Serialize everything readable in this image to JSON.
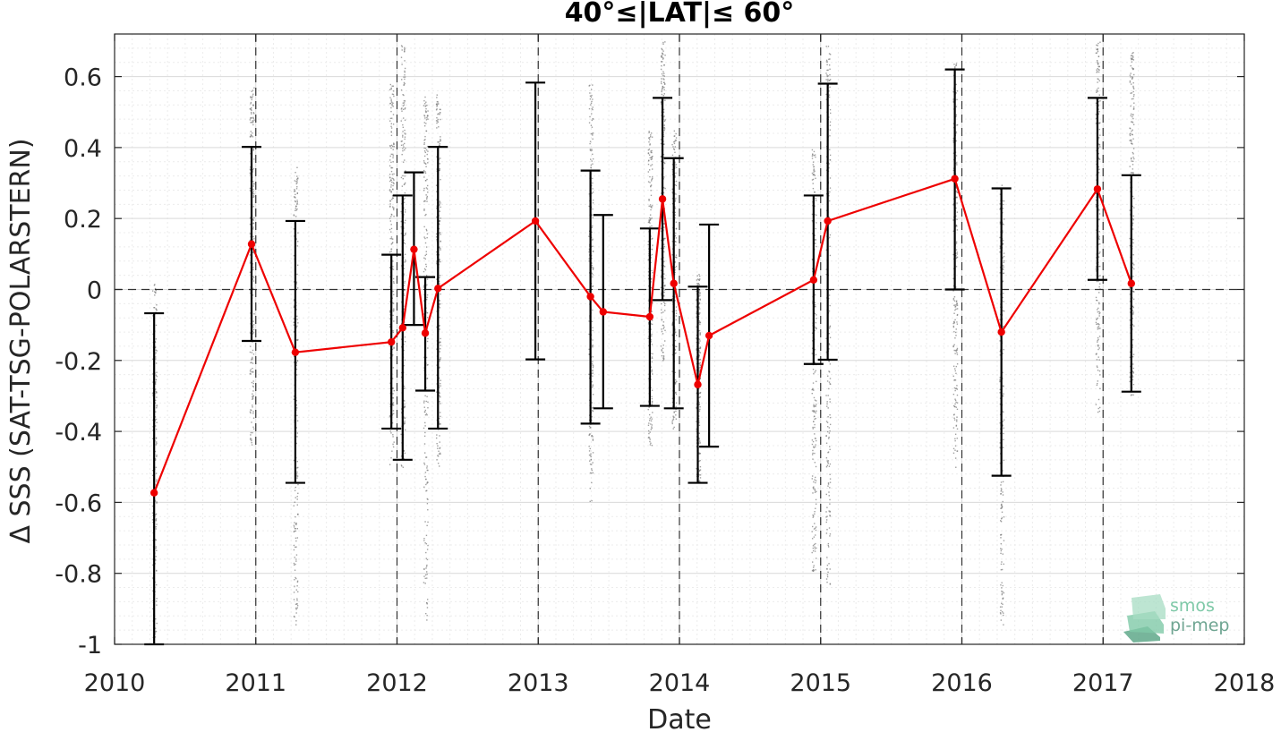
{
  "chart_data": {
    "type": "line",
    "title": "40°≤|LAT|≤ 60°",
    "xlabel": "Date",
    "ylabel": "Δ SSS (SAT-TSG-POLARSTERN)",
    "xlim": [
      2010,
      2018
    ],
    "ylim": [
      -1,
      0.72
    ],
    "x_ticks": [
      "2010",
      "2011",
      "2012",
      "2013",
      "2014",
      "2015",
      "2016",
      "2017",
      "2018"
    ],
    "y_ticks": [
      "0.6",
      "0.4",
      "0.2",
      "0",
      "-0.2",
      "-0.4",
      "-0.6",
      "-0.8",
      "-1"
    ],
    "grid": true,
    "series": [
      {
        "color": "#ee0000",
        "x": [
          2010.28,
          2010.97,
          2011.28,
          2011.96,
          2012.04,
          2012.12,
          2012.2,
          2012.29,
          2012.98,
          2013.37,
          2013.46,
          2013.79,
          2013.88,
          2013.96,
          2014.13,
          2014.21,
          2014.95,
          2015.05,
          2015.95,
          2016.28,
          2016.96,
          2017.2
        ],
        "y": [
          -0.573,
          0.128,
          -0.177,
          -0.148,
          -0.108,
          0.113,
          -0.123,
          0.003,
          0.193,
          -0.02,
          -0.063,
          -0.077,
          0.255,
          0.017,
          -0.268,
          -0.13,
          0.027,
          0.193,
          0.312,
          -0.12,
          0.283,
          0.017
        ],
        "y_upper": [
          -0.067,
          0.402,
          0.193,
          0.098,
          0.265,
          0.33,
          0.035,
          0.402,
          0.583,
          0.335,
          0.21,
          0.172,
          0.54,
          0.37,
          0.008,
          0.183,
          0.265,
          0.58,
          0.62,
          0.285,
          0.54,
          0.322
        ],
        "y_lower": [
          -1.0,
          -0.145,
          -0.545,
          -0.392,
          -0.48,
          -0.1,
          -0.285,
          -0.392,
          -0.197,
          -0.378,
          -0.335,
          -0.328,
          -0.03,
          -0.335,
          -0.545,
          -0.443,
          -0.21,
          -0.198,
          0.0,
          -0.525,
          0.027,
          -0.288
        ]
      }
    ],
    "scatter_clusters": [
      {
        "x": 2010.28,
        "y_min": -1.0,
        "y_max": 0.02
      },
      {
        "x": 2010.97,
        "y_min": -0.44,
        "y_max": 0.58
      },
      {
        "x": 2011.28,
        "y_min": -0.95,
        "y_max": 0.35
      },
      {
        "x": 2011.96,
        "y_min": -0.5,
        "y_max": 0.58
      },
      {
        "x": 2012.04,
        "y_min": -0.5,
        "y_max": 0.7
      },
      {
        "x": 2012.2,
        "y_min": -0.95,
        "y_max": 0.55
      },
      {
        "x": 2012.29,
        "y_min": -0.5,
        "y_max": 0.55
      },
      {
        "x": 2013.37,
        "y_min": -0.6,
        "y_max": 0.58
      },
      {
        "x": 2013.79,
        "y_min": -0.45,
        "y_max": 0.45
      },
      {
        "x": 2013.88,
        "y_min": -0.2,
        "y_max": 0.7
      },
      {
        "x": 2013.96,
        "y_min": -0.4,
        "y_max": 0.45
      },
      {
        "x": 2014.13,
        "y_min": -0.55,
        "y_max": 0.05
      },
      {
        "x": 2014.95,
        "y_min": -0.8,
        "y_max": 0.4
      },
      {
        "x": 2015.05,
        "y_min": -0.85,
        "y_max": 0.7
      },
      {
        "x": 2015.95,
        "y_min": -0.5,
        "y_max": 0.65
      },
      {
        "x": 2016.28,
        "y_min": -0.95,
        "y_max": 0.3
      },
      {
        "x": 2016.96,
        "y_min": -0.35,
        "y_max": 0.7
      },
      {
        "x": 2017.2,
        "y_min": -0.3,
        "y_max": 0.67
      }
    ],
    "vertical_dashed_lines": [
      2011,
      2012,
      2013,
      2014,
      2015,
      2016,
      2017
    ],
    "zero_line_dashed": true
  },
  "logo": {
    "line1": "smos",
    "line2": "pi-mep",
    "color1": "#7fc9a8",
    "color2": "#6fa592"
  },
  "colors": {
    "series": "#ee0000",
    "errorbar": "#000000",
    "scatter": "#7f7f7f",
    "grid_major": "#d9d9d9",
    "grid_minor": "#ececec"
  }
}
